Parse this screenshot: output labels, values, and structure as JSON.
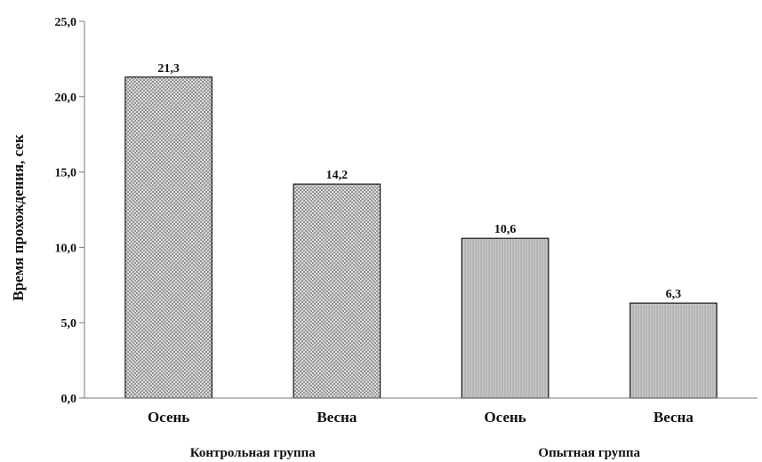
{
  "chart_data": {
    "type": "bar",
    "title": "",
    "xlabel": "",
    "ylabel": "Время прохождения, сек",
    "ylim": [
      0,
      25
    ],
    "yticks": [
      0,
      5,
      10,
      15,
      20,
      25
    ],
    "ytick_labels": [
      "0,0",
      "5,0",
      "10,0",
      "15,0",
      "20,0",
      "25,0"
    ],
    "grid": false,
    "legend": "none",
    "groups": [
      {
        "name": "Контрольная группа",
        "categories": [
          "Осень",
          "Весна"
        ]
      },
      {
        "name": "Опытная группа",
        "categories": [
          "Осень",
          "Весна"
        ]
      }
    ],
    "categories": [
      "Осень",
      "Весна",
      "Осень",
      "Весна"
    ],
    "values": [
      21.3,
      14.2,
      10.6,
      6.3
    ],
    "value_labels": [
      "21,3",
      "14,2",
      "10,6",
      "6,3"
    ],
    "bar_fills": [
      "crosshatch",
      "crosshatch",
      "vertical-lines",
      "vertical-lines"
    ],
    "colors": {
      "bar_stroke": "#1a1a1a",
      "crosshatch_base": "#ececec",
      "crosshatch_ink": "#8a8a8a",
      "vertical_base": "#c8c8c8",
      "vertical_ink": "#a4a4a4",
      "axis": "#777777",
      "text": "#111111"
    }
  }
}
